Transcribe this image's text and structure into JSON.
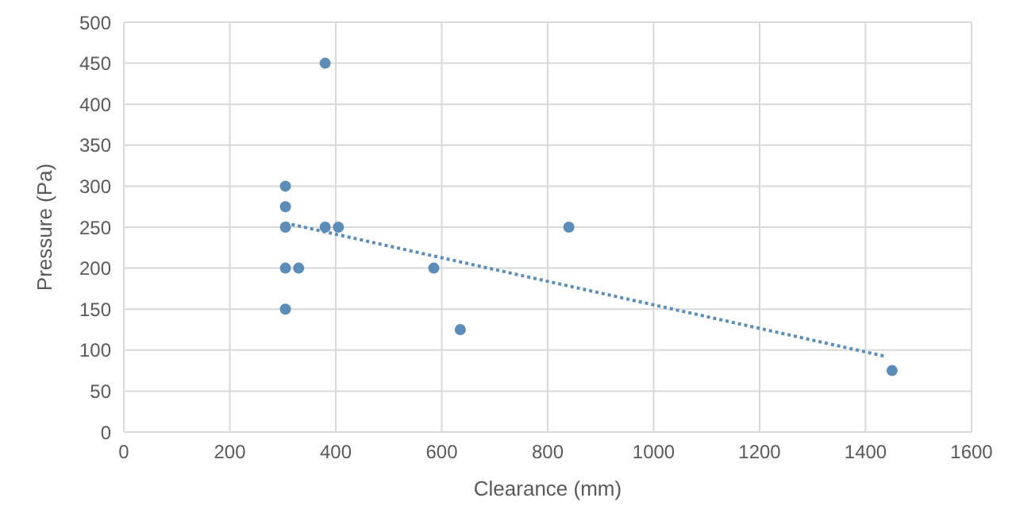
{
  "chart_data": {
    "type": "scatter",
    "xlabel": "Clearance (mm)",
    "ylabel": "Pressure (Pa)",
    "xlim": [
      0,
      1600
    ],
    "xticks": [
      0,
      200,
      400,
      600,
      800,
      1000,
      1200,
      1400,
      1600
    ],
    "ylim": [
      0,
      500
    ],
    "yticks": [
      0,
      50,
      100,
      150,
      200,
      250,
      300,
      350,
      400,
      450,
      500
    ],
    "grid": true,
    "marker": "circle",
    "series": [
      {
        "color": "#5b8db8",
        "x": [
          305,
          305,
          305,
          305,
          305,
          330,
          380,
          380,
          405,
          585,
          635,
          840,
          1450
        ],
        "values": [
          300,
          275,
          250,
          200,
          150,
          200,
          450,
          250,
          250,
          200,
          125,
          250,
          75
        ]
      },
      {
        "type": "line",
        "color": "#5b8db8",
        "line_style": "dotted",
        "marker": "none",
        "x": [
          305,
          1440
        ],
        "values": [
          255,
          92
        ]
      }
    ]
  }
}
